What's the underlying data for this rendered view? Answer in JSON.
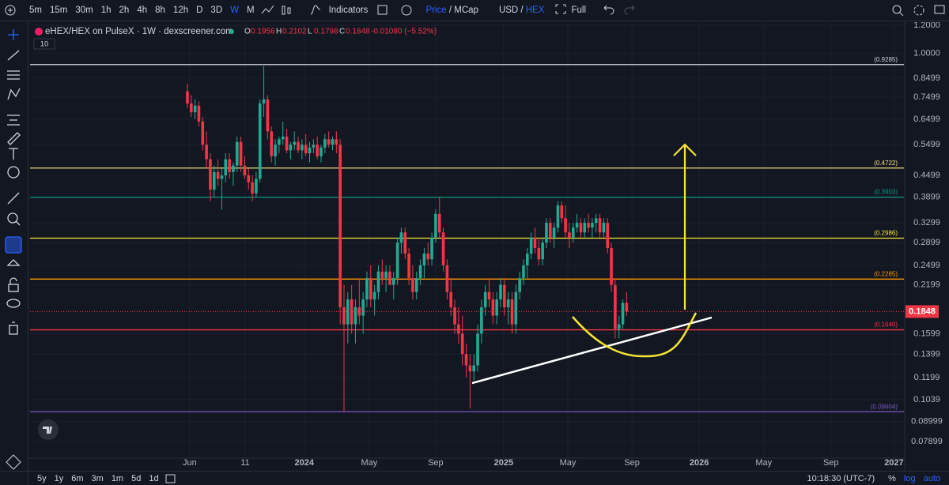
{
  "toolbar": {
    "intervals": [
      "5m",
      "15m",
      "30m",
      "1h",
      "2h",
      "4h",
      "8h",
      "12h",
      "D",
      "3D",
      "W",
      "M"
    ],
    "active_interval": "W",
    "indicators": "Indicators",
    "price_toggle": [
      "Price",
      "/",
      "MCap"
    ],
    "currency_toggle": [
      "USD",
      "/",
      "HEX"
    ],
    "full": "Full"
  },
  "legend": {
    "symbol": "eHEX/HEX on PulseX · 1W · dexscreener.com",
    "items": [
      {
        "key": "O",
        "value": "0.1956"
      },
      {
        "key": "H",
        "value": "0.2102"
      },
      {
        "key": "L",
        "value": "0.1798"
      },
      {
        "key": "C",
        "value": "0.1848"
      }
    ],
    "change": "-0.01080 (−5.52%)",
    "volume": "10"
  },
  "chart_data": {
    "type": "candlestick",
    "log_scale": true,
    "up_color": "#22ab94",
    "down_color": "#f23645",
    "ylim": [
      0.0709,
      1.264
    ],
    "yticks": [
      {
        "value": 1.2,
        "label": "1.2000"
      },
      {
        "value": 1,
        "label": "1.0000"
      },
      0.8499,
      0.7499,
      0.6499,
      0.5499,
      0.4499,
      0.3899,
      0.3299,
      0.2899,
      0.2499,
      0.2199,
      0.1599,
      0.1399,
      0.1199,
      0.1039,
      0.08999,
      0.07899
    ],
    "xlim": [
      -41.2,
      187.6
    ],
    "xticks": [
      {
        "value": 0.6,
        "label": "Jun"
      },
      {
        "value": 15.1,
        "label": "11"
      },
      {
        "value": 30.6,
        "label": "2024"
      },
      {
        "value": 47.6,
        "label": "May"
      },
      {
        "value": 65,
        "label": "Sep"
      },
      {
        "value": 82.8,
        "label": "2025"
      },
      {
        "value": 99.6,
        "label": "May"
      },
      {
        "value": 116.4,
        "label": "Sep"
      },
      {
        "value": 134,
        "label": "2026"
      },
      {
        "value": 150.9,
        "label": "May"
      },
      {
        "value": 168.5,
        "label": "Sep"
      },
      {
        "value": 185,
        "label": "2027"
      }
    ],
    "levels": [
      {
        "value": 0.9285,
        "label": "(0.9285)",
        "color": "#d1d4dc"
      },
      {
        "value": 0.4722,
        "label": "(0.4722)",
        "color": "#f3e37c"
      },
      {
        "value": 0.3903,
        "label": "(0.3903)",
        "color": "#089981"
      },
      {
        "value": 0.2986,
        "label": "(0.2986)",
        "color": "#f7e433"
      },
      {
        "value": 0.2285,
        "label": "(0.2285)",
        "color": "#ff9800"
      },
      {
        "value": 0.164,
        "label": "(0.1640)",
        "color": "#f23645"
      },
      {
        "value": 0.09604,
        "label": "(0.09604)",
        "color": "#7e57c2"
      }
    ],
    "ohlc": [
      [
        0.78,
        0.82,
        0.7,
        0.72
      ],
      [
        0.72,
        0.76,
        0.66,
        0.68
      ],
      [
        0.68,
        0.74,
        0.65,
        0.71
      ],
      [
        0.71,
        0.73,
        0.62,
        0.64
      ],
      [
        0.64,
        0.66,
        0.53,
        0.55
      ],
      [
        0.55,
        0.6,
        0.47,
        0.5
      ],
      [
        0.5,
        0.52,
        0.38,
        0.41
      ],
      [
        0.41,
        0.48,
        0.39,
        0.46
      ],
      [
        0.46,
        0.5,
        0.42,
        0.44
      ],
      [
        0.44,
        0.47,
        0.36,
        0.45
      ],
      [
        0.45,
        0.52,
        0.43,
        0.5
      ],
      [
        0.5,
        0.52,
        0.44,
        0.46
      ],
      [
        0.46,
        0.49,
        0.42,
        0.48
      ],
      [
        0.48,
        0.58,
        0.46,
        0.56
      ],
      [
        0.56,
        0.58,
        0.46,
        0.48
      ],
      [
        0.48,
        0.51,
        0.44,
        0.45
      ],
      [
        0.45,
        0.47,
        0.41,
        0.43
      ],
      [
        0.43,
        0.45,
        0.38,
        0.4
      ],
      [
        0.4,
        0.46,
        0.39,
        0.44
      ],
      [
        0.44,
        0.74,
        0.43,
        0.72
      ],
      [
        0.72,
        0.92,
        0.66,
        0.74
      ],
      [
        0.74,
        0.76,
        0.57,
        0.6
      ],
      [
        0.6,
        0.62,
        0.49,
        0.51
      ],
      [
        0.51,
        0.57,
        0.48,
        0.55
      ],
      [
        0.55,
        0.58,
        0.52,
        0.57
      ],
      [
        0.57,
        0.64,
        0.55,
        0.58
      ],
      [
        0.58,
        0.61,
        0.52,
        0.53
      ],
      [
        0.53,
        0.56,
        0.5,
        0.55
      ],
      [
        0.55,
        0.6,
        0.53,
        0.56
      ],
      [
        0.56,
        0.58,
        0.52,
        0.53
      ],
      [
        0.53,
        0.57,
        0.5,
        0.55
      ],
      [
        0.55,
        0.59,
        0.51,
        0.52
      ],
      [
        0.52,
        0.56,
        0.49,
        0.54
      ],
      [
        0.54,
        0.57,
        0.52,
        0.55
      ],
      [
        0.55,
        0.58,
        0.5,
        0.51
      ],
      [
        0.51,
        0.55,
        0.49,
        0.54
      ],
      [
        0.54,
        0.59,
        0.52,
        0.57
      ],
      [
        0.57,
        0.6,
        0.54,
        0.55
      ],
      [
        0.55,
        0.58,
        0.53,
        0.57
      ],
      [
        0.57,
        0.6,
        0.52,
        0.55
      ],
      [
        0.55,
        0.57,
        0.17,
        0.19
      ],
      [
        0.19,
        0.22,
        0.096,
        0.17
      ],
      [
        0.17,
        0.21,
        0.15,
        0.2
      ],
      [
        0.2,
        0.22,
        0.16,
        0.17
      ],
      [
        0.17,
        0.2,
        0.15,
        0.19
      ],
      [
        0.19,
        0.23,
        0.17,
        0.18
      ],
      [
        0.18,
        0.21,
        0.16,
        0.2
      ],
      [
        0.2,
        0.24,
        0.19,
        0.23
      ],
      [
        0.23,
        0.25,
        0.19,
        0.2
      ],
      [
        0.2,
        0.22,
        0.18,
        0.21
      ],
      [
        0.21,
        0.25,
        0.2,
        0.24
      ],
      [
        0.24,
        0.26,
        0.22,
        0.23
      ],
      [
        0.23,
        0.25,
        0.21,
        0.24
      ],
      [
        0.24,
        0.25,
        0.22,
        0.22
      ],
      [
        0.22,
        0.24,
        0.2,
        0.23
      ],
      [
        0.23,
        0.3,
        0.22,
        0.29
      ],
      [
        0.29,
        0.32,
        0.27,
        0.31
      ],
      [
        0.31,
        0.32,
        0.26,
        0.27
      ],
      [
        0.27,
        0.28,
        0.22,
        0.23
      ],
      [
        0.23,
        0.25,
        0.2,
        0.21
      ],
      [
        0.21,
        0.24,
        0.2,
        0.23
      ],
      [
        0.23,
        0.26,
        0.22,
        0.25
      ],
      [
        0.25,
        0.28,
        0.23,
        0.27
      ],
      [
        0.27,
        0.29,
        0.25,
        0.26
      ],
      [
        0.26,
        0.31,
        0.25,
        0.3
      ],
      [
        0.3,
        0.36,
        0.29,
        0.35
      ],
      [
        0.35,
        0.39,
        0.3,
        0.31
      ],
      [
        0.31,
        0.32,
        0.24,
        0.25
      ],
      [
        0.25,
        0.26,
        0.2,
        0.21
      ],
      [
        0.21,
        0.23,
        0.18,
        0.19
      ],
      [
        0.19,
        0.2,
        0.16,
        0.17
      ],
      [
        0.17,
        0.19,
        0.15,
        0.16
      ],
      [
        0.16,
        0.18,
        0.13,
        0.14
      ],
      [
        0.14,
        0.15,
        0.12,
        0.13
      ],
      [
        0.13,
        0.14,
        0.098,
        0.125
      ],
      [
        0.125,
        0.14,
        0.118,
        0.13
      ],
      [
        0.13,
        0.17,
        0.125,
        0.16
      ],
      [
        0.16,
        0.2,
        0.15,
        0.19
      ],
      [
        0.19,
        0.22,
        0.18,
        0.21
      ],
      [
        0.21,
        0.23,
        0.19,
        0.2
      ],
      [
        0.2,
        0.21,
        0.17,
        0.18
      ],
      [
        0.18,
        0.21,
        0.17,
        0.2
      ],
      [
        0.2,
        0.23,
        0.19,
        0.22
      ],
      [
        0.22,
        0.23,
        0.18,
        0.19
      ],
      [
        0.19,
        0.21,
        0.17,
        0.2
      ],
      [
        0.2,
        0.21,
        0.16,
        0.17
      ],
      [
        0.17,
        0.22,
        0.16,
        0.21
      ],
      [
        0.21,
        0.24,
        0.2,
        0.23
      ],
      [
        0.23,
        0.26,
        0.22,
        0.25
      ],
      [
        0.25,
        0.28,
        0.23,
        0.27
      ],
      [
        0.27,
        0.31,
        0.26,
        0.3
      ],
      [
        0.3,
        0.32,
        0.27,
        0.28
      ],
      [
        0.28,
        0.3,
        0.25,
        0.26
      ],
      [
        0.26,
        0.3,
        0.25,
        0.29
      ],
      [
        0.29,
        0.34,
        0.28,
        0.33
      ],
      [
        0.33,
        0.34,
        0.29,
        0.3
      ],
      [
        0.3,
        0.33,
        0.28,
        0.32
      ],
      [
        0.32,
        0.38,
        0.31,
        0.37
      ],
      [
        0.37,
        0.38,
        0.33,
        0.34
      ],
      [
        0.34,
        0.37,
        0.3,
        0.31
      ],
      [
        0.31,
        0.33,
        0.28,
        0.3
      ],
      [
        0.3,
        0.33,
        0.29,
        0.32
      ],
      [
        0.32,
        0.35,
        0.31,
        0.33
      ],
      [
        0.33,
        0.34,
        0.3,
        0.31
      ],
      [
        0.31,
        0.34,
        0.3,
        0.33
      ],
      [
        0.33,
        0.35,
        0.31,
        0.32
      ],
      [
        0.32,
        0.34,
        0.3,
        0.33
      ],
      [
        0.33,
        0.35,
        0.31,
        0.34
      ],
      [
        0.34,
        0.35,
        0.3,
        0.31
      ],
      [
        0.31,
        0.34,
        0.3,
        0.33
      ],
      [
        0.33,
        0.34,
        0.27,
        0.28
      ],
      [
        0.28,
        0.29,
        0.21,
        0.22
      ],
      [
        0.22,
        0.23,
        0.155,
        0.165
      ],
      [
        0.165,
        0.18,
        0.155,
        0.17
      ],
      [
        0.17,
        0.2,
        0.165,
        0.1956
      ],
      [
        0.1956,
        0.2102,
        0.1798,
        0.1848
      ]
    ]
  },
  "bottom_bar": {
    "ranges": [
      "5y",
      "1y",
      "6m",
      "3m",
      "1m",
      "5d",
      "1d"
    ],
    "clock": "10:18:30 (UTC-7)",
    "scale_options": [
      "%",
      "log",
      "auto"
    ]
  }
}
